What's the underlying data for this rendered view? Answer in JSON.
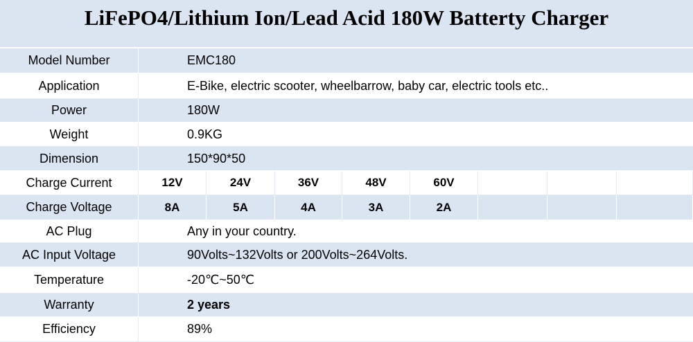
{
  "title": "LiFePO4/Lithium Ion/Lead Acid 180W Batterty Charger",
  "rows": [
    {
      "label": "Model Number",
      "value": "EMC180"
    },
    {
      "label": "Application",
      "value": "E-Bike, electric scooter, wheelbarrow, baby car, electric tools etc.."
    },
    {
      "label": "Power",
      "value": "180W"
    },
    {
      "label": "Weight",
      "value": "0.9KG"
    },
    {
      "label": "Dimension",
      "value": "150*90*50"
    },
    {
      "label": "Charge Current",
      "values": [
        "12V",
        "24V",
        "36V",
        "48V",
        "60V"
      ]
    },
    {
      "label": "Charge Voltage",
      "values": [
        "8A",
        "5A",
        "4A",
        "3A",
        "2A"
      ]
    },
    {
      "label": "AC Plug",
      "value": "Any in your country."
    },
    {
      "label": "AC Input Voltage",
      "value": "90Volts~132Volts or 200Volts~264Volts."
    },
    {
      "label": "Temperature",
      "value": "-20℃~50℃"
    },
    {
      "label": "Warranty",
      "value": "2 years",
      "bold": true
    },
    {
      "label": "Efficiency",
      "value": "89%"
    }
  ]
}
